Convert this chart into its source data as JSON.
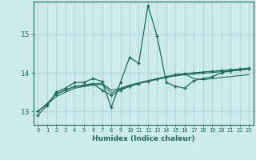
{
  "xlabel": "Humidex (Indice chaleur)",
  "background_color": "#cdeaed",
  "grid_color": "#b0d8dc",
  "line_color": "#1a6b5a",
  "xlim": [
    -0.5,
    23.5
  ],
  "ylim": [
    12.65,
    15.85
  ],
  "yticks": [
    13,
    14,
    15
  ],
  "xticks": [
    0,
    1,
    2,
    3,
    4,
    5,
    6,
    7,
    8,
    9,
    10,
    11,
    12,
    13,
    14,
    15,
    16,
    17,
    18,
    19,
    20,
    21,
    22,
    23
  ],
  "series1_x": [
    0,
    1,
    2,
    3,
    4,
    5,
    6,
    7,
    8,
    9,
    10,
    11,
    12,
    13,
    14,
    15,
    16,
    17,
    18,
    19,
    20,
    21,
    22,
    23
  ],
  "series1_y": [
    12.9,
    13.15,
    13.5,
    13.6,
    13.75,
    13.75,
    13.85,
    13.78,
    13.1,
    13.75,
    14.4,
    14.25,
    15.75,
    14.95,
    13.75,
    13.65,
    13.6,
    13.8,
    13.85,
    13.9,
    14.0,
    14.05,
    14.08,
    14.1
  ],
  "series2_x": [
    0,
    1,
    2,
    3,
    4,
    5,
    6,
    7,
    8,
    9,
    10,
    11,
    12,
    13,
    14,
    15,
    16,
    17,
    18,
    19,
    20,
    21,
    22,
    23
  ],
  "series2_y": [
    13.0,
    13.2,
    13.45,
    13.55,
    13.65,
    13.68,
    13.72,
    13.55,
    13.42,
    13.55,
    13.65,
    13.72,
    13.78,
    13.84,
    13.9,
    13.95,
    13.98,
    14.0,
    14.02,
    14.04,
    14.06,
    14.08,
    14.1,
    14.12
  ],
  "series3_x": [
    2,
    3,
    4,
    5,
    6,
    7,
    8,
    9,
    10,
    11,
    12,
    13,
    14,
    15,
    16,
    17,
    18,
    19,
    20,
    21,
    22,
    23
  ],
  "series3_y": [
    13.45,
    13.55,
    13.64,
    13.67,
    13.71,
    13.73,
    13.55,
    13.6,
    13.68,
    13.74,
    13.8,
    13.85,
    13.9,
    13.94,
    13.97,
    13.85,
    13.82,
    13.85,
    13.88,
    13.9,
    13.93,
    13.95
  ],
  "series4_x": [
    0,
    1,
    2,
    3,
    4,
    5,
    6,
    7,
    8,
    9,
    10,
    11,
    12,
    13,
    14,
    15,
    16,
    17,
    18,
    19,
    20,
    21,
    22,
    23
  ],
  "series4_y": [
    13.0,
    13.18,
    13.38,
    13.5,
    13.6,
    13.64,
    13.68,
    13.7,
    13.48,
    13.58,
    13.67,
    13.73,
    13.78,
    13.83,
    13.88,
    13.92,
    13.95,
    13.97,
    13.99,
    14.01,
    14.03,
    14.05,
    14.07,
    14.1
  ]
}
